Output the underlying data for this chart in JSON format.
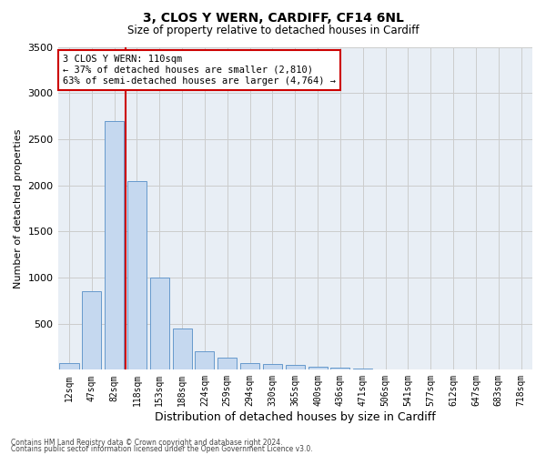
{
  "title1": "3, CLOS Y WERN, CARDIFF, CF14 6NL",
  "title2": "Size of property relative to detached houses in Cardiff",
  "xlabel": "Distribution of detached houses by size in Cardiff",
  "ylabel": "Number of detached properties",
  "categories": [
    "12sqm",
    "47sqm",
    "82sqm",
    "118sqm",
    "153sqm",
    "188sqm",
    "224sqm",
    "259sqm",
    "294sqm",
    "330sqm",
    "365sqm",
    "400sqm",
    "436sqm",
    "471sqm",
    "506sqm",
    "541sqm",
    "577sqm",
    "612sqm",
    "647sqm",
    "683sqm",
    "718sqm"
  ],
  "values": [
    75,
    850,
    2700,
    2050,
    1000,
    450,
    200,
    130,
    75,
    60,
    50,
    30,
    20,
    10,
    5,
    4,
    3,
    2,
    2,
    1,
    1
  ],
  "bar_color": "#c5d8ef",
  "bar_edge_color": "#6699cc",
  "vline_color": "#cc0000",
  "annotation_text": "3 CLOS Y WERN: 110sqm\n← 37% of detached houses are smaller (2,810)\n63% of semi-detached houses are larger (4,764) →",
  "annotation_box_color": "#ffffff",
  "annotation_box_edge": "#cc0000",
  "ylim": [
    0,
    3500
  ],
  "yticks": [
    0,
    500,
    1000,
    1500,
    2000,
    2500,
    3000,
    3500
  ],
  "grid_color": "#cccccc",
  "bg_color": "#e8eef5",
  "footer1": "Contains HM Land Registry data © Crown copyright and database right 2024.",
  "footer2": "Contains public sector information licensed under the Open Government Licence v3.0."
}
